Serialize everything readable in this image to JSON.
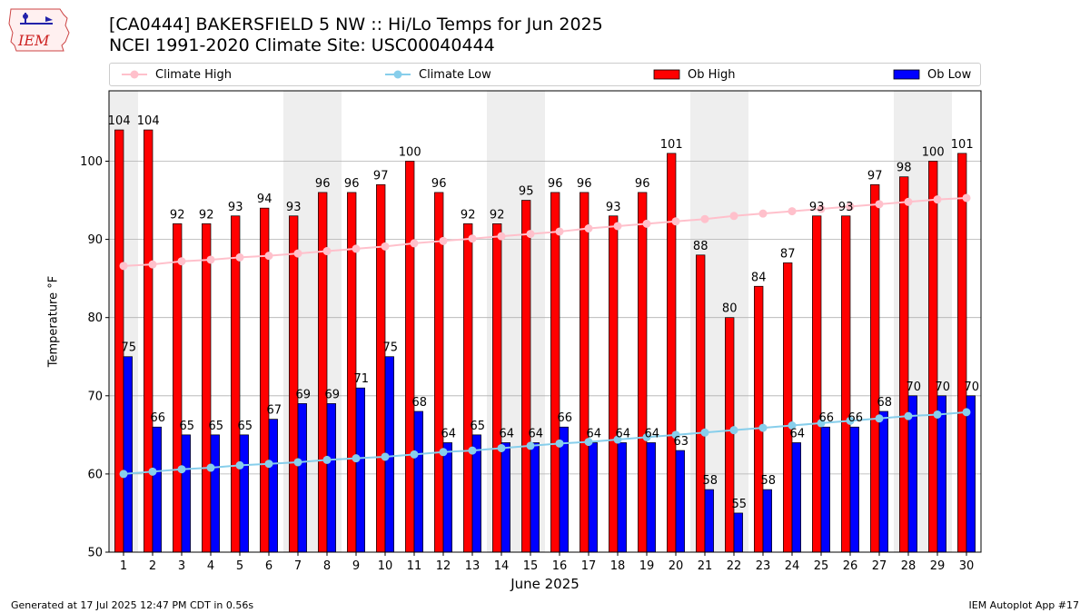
{
  "header": {
    "title_line1": "[CA0444] BAKERSFIELD 5 NW :: Hi/Lo Temps for Jun 2025",
    "title_line2": "NCEI 1991-2020 Climate Site: USC00040444",
    "logo_text": "IEM"
  },
  "footer": {
    "generated": "Generated at 17 Jul 2025 12:47 PM CDT in 0.56s",
    "app": "IEM Autoplot App #17"
  },
  "colors": {
    "ob_high": "#ff0000",
    "ob_low": "#0000ff",
    "climate_high": "#ffc0cb",
    "climate_low": "#87ceeb",
    "weekend_shade": "#eeeeee",
    "grid": "#b0b0b0"
  },
  "chart_data": {
    "type": "bar",
    "title": "[CA0444] BAKERSFIELD 5 NW :: Hi/Lo Temps for Jun 2025",
    "subtitle": "NCEI 1991-2020 Climate Site: USC00040444",
    "xlabel": "June 2025",
    "ylabel": "Temperature °F",
    "ylim": [
      50,
      109
    ],
    "yticks": [
      50,
      60,
      70,
      80,
      90,
      100
    ],
    "grid": true,
    "legend_placement": "top, above plot",
    "shaded_days": [
      1,
      7,
      8,
      14,
      15,
      21,
      22,
      28,
      29
    ],
    "categories": [
      "1",
      "2",
      "3",
      "4",
      "5",
      "6",
      "7",
      "8",
      "9",
      "10",
      "11",
      "12",
      "13",
      "14",
      "15",
      "16",
      "17",
      "18",
      "19",
      "20",
      "21",
      "22",
      "23",
      "24",
      "25",
      "26",
      "27",
      "28",
      "29",
      "30"
    ],
    "series": [
      {
        "name": "Ob High",
        "kind": "bar",
        "values": [
          104,
          104,
          92,
          92,
          93,
          94,
          93,
          96,
          96,
          97,
          100,
          96,
          92,
          92,
          95,
          96,
          96,
          93,
          96,
          101,
          88,
          80,
          84,
          87,
          93,
          93,
          97,
          98,
          100,
          101
        ]
      },
      {
        "name": "Ob Low",
        "kind": "bar",
        "values": [
          75,
          66,
          65,
          65,
          65,
          67,
          69,
          69,
          71,
          75,
          68,
          64,
          65,
          64,
          64,
          66,
          64,
          64,
          64,
          63,
          58,
          55,
          58,
          64,
          66,
          66,
          68,
          70,
          70,
          70
        ]
      },
      {
        "name": "Climate High",
        "kind": "line",
        "values": [
          86.6,
          86.8,
          87.2,
          87.4,
          87.7,
          87.9,
          88.2,
          88.5,
          88.8,
          89.1,
          89.5,
          89.8,
          90.1,
          90.4,
          90.7,
          91.0,
          91.4,
          91.7,
          92.0,
          92.3,
          92.6,
          93.0,
          93.3,
          93.6,
          93.9,
          94.2,
          94.5,
          94.8,
          95.1,
          95.3
        ]
      },
      {
        "name": "Climate Low",
        "kind": "line",
        "values": [
          60.0,
          60.3,
          60.6,
          60.8,
          61.1,
          61.3,
          61.5,
          61.8,
          62.0,
          62.2,
          62.5,
          62.8,
          63.0,
          63.3,
          63.6,
          63.9,
          64.1,
          64.4,
          64.7,
          65.0,
          65.3,
          65.6,
          65.9,
          66.2,
          66.5,
          66.8,
          67.1,
          67.4,
          67.6,
          67.9
        ]
      }
    ]
  }
}
